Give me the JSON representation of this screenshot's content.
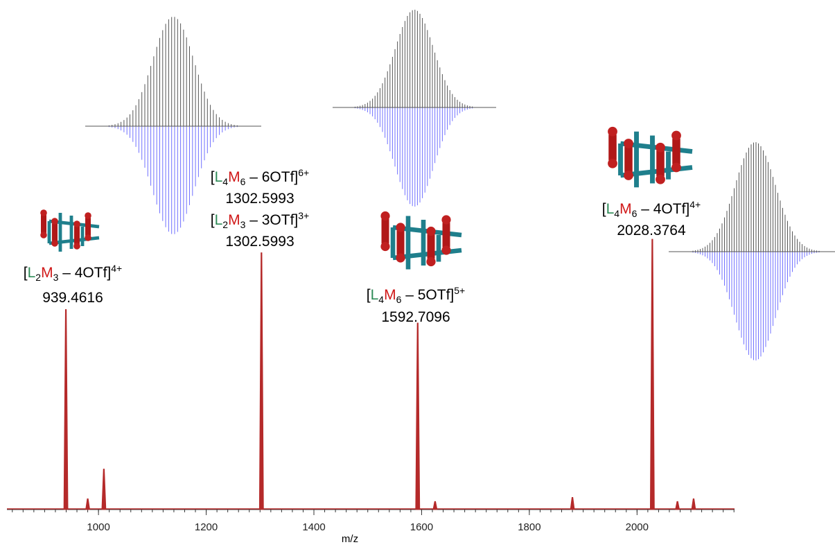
{
  "chart_data": {
    "type": "spectrum",
    "x_label": "m/z",
    "x": [
      939.4616,
      980,
      1010,
      1302.5993,
      1592.7096,
      1625,
      1880,
      2028.3764,
      2075,
      2105
    ],
    "values": [
      74,
      4,
      15,
      95,
      69,
      3,
      4.5,
      100,
      3,
      4
    ],
    "color": "#b52a2a",
    "xlim": [
      830,
      2181
    ],
    "xticks": [
      1000,
      1200,
      1400,
      1600,
      1800,
      2000
    ],
    "ylim": [
      0,
      100
    ],
    "annotations": [
      {
        "parts": [
          "[",
          "L",
          "2",
          "M",
          "3",
          " – 4OTf]",
          "4+"
        ]
      },
      {
        "parts": [
          "[",
          "L",
          "4",
          "M",
          "6",
          " – 6OTf]",
          "6+"
        ]
      },
      {
        "parts": [
          "[",
          "L",
          "2",
          "M",
          "3",
          " – 3OTf]",
          "3+"
        ]
      },
      {
        "parts": [
          "[",
          "L",
          "4",
          "M",
          "6",
          " – 5OTf]",
          "5+"
        ]
      },
      {
        "parts": [
          "[",
          "L",
          "4",
          "M",
          "6",
          " – 4OTf]",
          "4+"
        ]
      }
    ]
  }
}
